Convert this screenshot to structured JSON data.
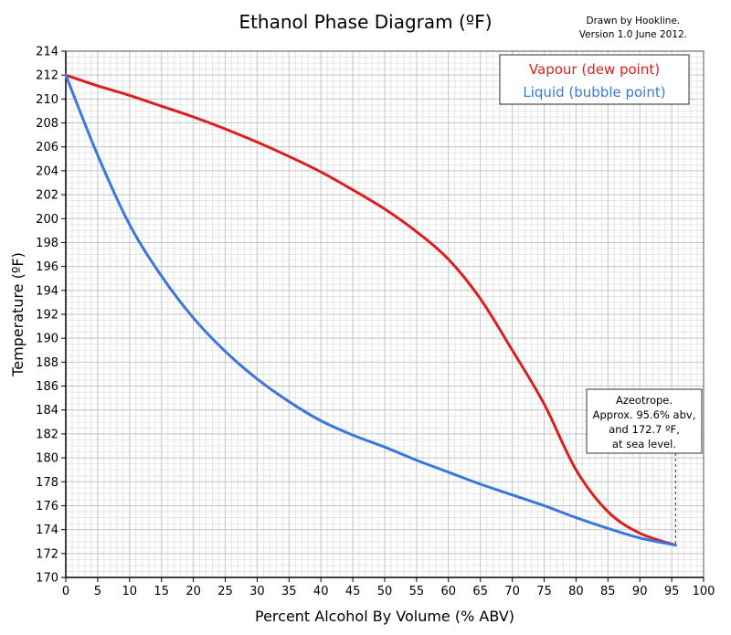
{
  "chart_data": {
    "type": "line",
    "title": "Ethanol Phase Diagram (ºF)",
    "credit": [
      "Drawn by Hookline.",
      "Version 1.0 June 2012."
    ],
    "xlabel": "Percent Alcohol By Volume (% ABV)",
    "ylabel": "Temperature (ºF)",
    "xlim": [
      0,
      100
    ],
    "ylim": [
      170,
      214
    ],
    "x_ticks": [
      0,
      5,
      10,
      15,
      20,
      25,
      30,
      35,
      40,
      45,
      50,
      55,
      60,
      65,
      70,
      75,
      80,
      85,
      90,
      95,
      100
    ],
    "y_ticks": [
      170,
      172,
      174,
      176,
      178,
      180,
      182,
      184,
      186,
      188,
      190,
      192,
      194,
      196,
      198,
      200,
      202,
      204,
      206,
      208,
      210,
      212,
      214
    ],
    "grid": true,
    "legend": {
      "position": "top-right"
    },
    "series": [
      {
        "name": "Vapour (dew point)",
        "color": "#dd1e1e",
        "x": [
          0,
          5,
          10,
          15,
          20,
          25,
          30,
          35,
          40,
          45,
          50,
          55,
          60,
          65,
          70,
          75,
          80,
          85,
          90,
          95.6
        ],
        "y": [
          212.0,
          211.1,
          210.3,
          209.4,
          208.5,
          207.5,
          206.4,
          205.2,
          203.9,
          202.4,
          200.8,
          198.9,
          196.6,
          193.3,
          189.0,
          184.5,
          179.0,
          175.5,
          173.7,
          172.7
        ]
      },
      {
        "name": "Liquid (bubble point)",
        "color": "#3a78e0",
        "x": [
          0,
          5,
          10,
          15,
          20,
          25,
          30,
          35,
          40,
          45,
          50,
          55,
          60,
          65,
          70,
          75,
          80,
          85,
          90,
          95.6
        ],
        "y": [
          212.0,
          205.3,
          199.5,
          195.2,
          191.7,
          188.9,
          186.6,
          184.7,
          183.1,
          181.9,
          180.9,
          179.8,
          178.8,
          177.8,
          176.9,
          176.0,
          175.0,
          174.1,
          173.3,
          172.7
        ]
      }
    ],
    "annotation": {
      "x": 95.6,
      "y": 172.7,
      "lines": [
        "Azeotrope.",
        "Approx. 95.6% abv,",
        "and 172.7 ºF,",
        "at sea level."
      ]
    }
  }
}
